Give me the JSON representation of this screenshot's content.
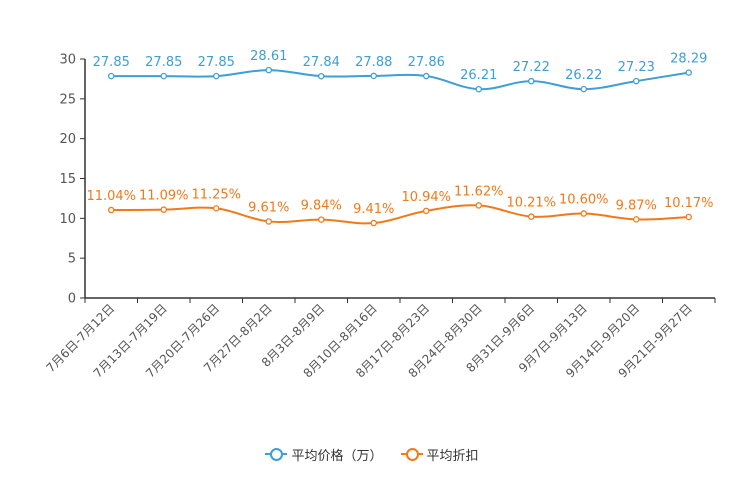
{
  "chart_data": {
    "type": "line",
    "categories": [
      "7月6日-7月12日",
      "7月13日-7月19日",
      "7月20日-7月26日",
      "7月27日-8月2日",
      "8月3日-8月9日",
      "8月10日-8月16日",
      "8月17日-8月23日",
      "8月24日-8月30日",
      "8月31日-9月6日",
      "9月7日-9月13日",
      "9月14日-9月20日",
      "9月21日-9月27日"
    ],
    "ylim": [
      0,
      30
    ],
    "yticks": [
      0,
      5,
      10,
      15,
      20,
      25,
      30
    ],
    "series": [
      {
        "name": "平均价格（万）",
        "color": "#3d9fd3",
        "values": [
          27.85,
          27.85,
          27.85,
          28.61,
          27.84,
          27.88,
          27.86,
          26.21,
          27.22,
          26.22,
          27.23,
          28.29
        ],
        "labels": [
          "27.85",
          "27.85",
          "27.85",
          "28.61",
          "27.84",
          "27.88",
          "27.86",
          "26.21",
          "27.22",
          "26.22",
          "27.23",
          "28.29"
        ]
      },
      {
        "name": "平均折扣",
        "color": "#f07a1a",
        "values": [
          11.04,
          11.09,
          11.25,
          9.61,
          9.84,
          9.41,
          10.94,
          11.62,
          10.21,
          10.6,
          9.87,
          10.17
        ],
        "labels": [
          "11.04%",
          "11.09%",
          "11.25%",
          "9.61%",
          "9.84%",
          "9.41%",
          "10.94%",
          "11.62%",
          "10.21%",
          "10.60%",
          "9.87%",
          "10.17%"
        ]
      }
    ],
    "legend": {
      "position": "bottom-center"
    }
  }
}
